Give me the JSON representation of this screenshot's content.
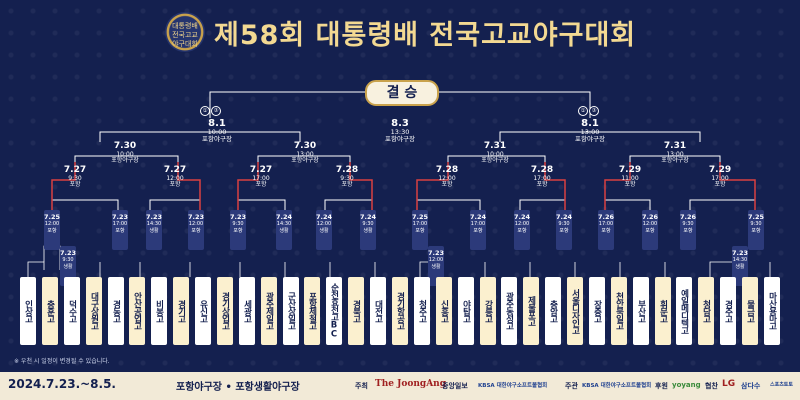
{
  "logo": {
    "line1": "대통령배",
    "line2": "전국고교",
    "line3": "야구대회"
  },
  "title": "제58회 대통령배 전국고교야구대회",
  "final_label": "결 승",
  "games": {
    "final": {
      "date": "8.3",
      "time": "13:30",
      "venue": "포항야구장"
    },
    "semi_left": {
      "date": "8.1",
      "time": "10:00",
      "venue": "포항야구장"
    },
    "semi_right": {
      "date": "8.1",
      "time": "13:00",
      "venue": "포항야구장"
    },
    "qf1": {
      "date": "7.30",
      "time": "10:00",
      "venue": "포항야구장"
    },
    "qf2": {
      "date": "7.30",
      "time": "13:00",
      "venue": "포항야구장"
    },
    "qf3": {
      "date": "7.31",
      "time": "10:00",
      "venue": "포항야구장"
    },
    "qf4": {
      "date": "7.31",
      "time": "13:00",
      "venue": "포항야구장"
    },
    "r16_1": {
      "date": "7.27",
      "time": "9:30",
      "venue": "포항"
    },
    "r16_2": {
      "date": "7.27",
      "time": "12:00",
      "venue": "포항"
    },
    "r16_3": {
      "date": "7.27",
      "time": "17:00",
      "venue": "포항"
    },
    "r16_4": {
      "date": "7.28",
      "time": "9:30",
      "venue": "포항"
    },
    "r16_5": {
      "date": "7.28",
      "time": "12:00",
      "venue": "포항"
    },
    "r16_6": {
      "date": "7.28",
      "time": "17:00",
      "venue": "포항"
    },
    "r16_7": {
      "date": "7.29",
      "time": "11:00",
      "venue": "포항"
    },
    "r16_8": {
      "date": "7.29",
      "time": "17:00",
      "venue": "포항"
    },
    "r1": [
      {
        "date": "7.25",
        "time": "12:00",
        "venue": "포항"
      },
      {
        "date": "7.23",
        "time": "9:30",
        "venue": "생활"
      },
      {
        "date": "7.23",
        "time": "17:00",
        "venue": "포항"
      },
      {
        "date": "7.23",
        "time": "14:30",
        "venue": "생활"
      },
      {
        "date": "7.23",
        "time": "12:00",
        "venue": "포항"
      },
      {
        "date": "7.23",
        "time": "9:30",
        "venue": "포항"
      },
      {
        "date": "7.24",
        "time": "14:30",
        "venue": "생활"
      },
      {
        "date": "7.24",
        "time": "12:00",
        "venue": "생활"
      },
      {
        "date": "7.24",
        "time": "9:30",
        "venue": "생활"
      },
      {
        "date": "7.25",
        "time": "17:00",
        "venue": "포항"
      },
      {
        "date": "7.23",
        "time": "12:00",
        "venue": "생활"
      },
      {
        "date": "7.24",
        "time": "17:00",
        "venue": "포항"
      },
      {
        "date": "7.24",
        "time": "12:00",
        "venue": "포항"
      },
      {
        "date": "7.24",
        "time": "9:30",
        "venue": "포항"
      },
      {
        "date": "7.26",
        "time": "17:00",
        "venue": "포항"
      },
      {
        "date": "7.26",
        "time": "12:00",
        "venue": "포항"
      },
      {
        "date": "7.26",
        "time": "9:30",
        "venue": "포항"
      },
      {
        "date": "7.23",
        "time": "14:30",
        "venue": "생활"
      },
      {
        "date": "7.25",
        "time": "9:30",
        "venue": "포항"
      }
    ]
  },
  "teams": [
    "인상고",
    "충훈고",
    "덕수고",
    "대구상원고",
    "경동고",
    "안산공업고",
    "비봉고",
    "경기고",
    "유신고",
    "경기상업고",
    "세광고",
    "광주제일고",
    "군산상일고",
    "포항제철고",
    "순천효천고BC",
    "경북고",
    "대전고",
    "경기항공고",
    "청주고",
    "신흥고",
    "야탑고",
    "강릉고",
    "광주동성고",
    "제물포고",
    "충암고",
    "서울디자인고",
    "장충고",
    "천안북일고",
    "부산고",
    "휘문고",
    "예일메디텍고",
    "청담고",
    "경주고",
    "물금고",
    "마산용마고"
  ],
  "note": "※ 우천 시 일정이 변경될 수 있습니다.",
  "footer": {
    "date": "2024.7.23.~8.5.",
    "venue": "포항야구장 • 포항생활야구장",
    "host_label": "주최",
    "host1": "The JoongAng",
    "host2": "중앙일보",
    "host3": "KBSA 대한야구소프트볼협회",
    "org_label": "주관",
    "org1": "KBSA 대한야구소프트볼협회",
    "sponsor_label": "후원",
    "sponsor1": "yoyang",
    "partner_label": "협찬",
    "partner1": "LG",
    "partner2": "삼다수",
    "partner3": "스포츠토토"
  }
}
